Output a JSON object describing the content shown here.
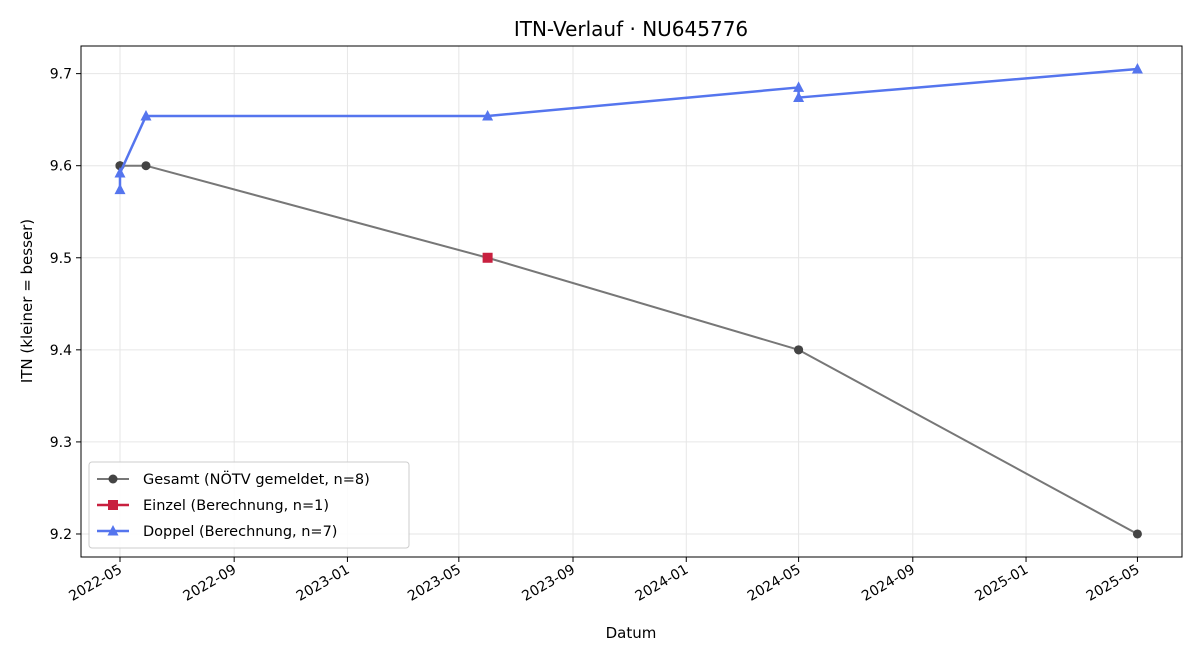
{
  "chart_data": {
    "type": "line",
    "title": "ITN-Verlauf · NU645776",
    "xlabel": "Datum",
    "ylabel": "ITN  (kleiner = besser)",
    "x_type": "date",
    "xlim": [
      "2022-03-20",
      "2025-06-18"
    ],
    "ylim": [
      9.175,
      9.73
    ],
    "x_ticks": [
      "2022-05",
      "2022-09",
      "2023-01",
      "2023-05",
      "2023-09",
      "2024-01",
      "2024-05",
      "2024-09",
      "2025-01",
      "2025-05"
    ],
    "y_ticks": [
      "9.2",
      "9.3",
      "9.4",
      "9.5",
      "9.6",
      "9.7"
    ],
    "grid": true,
    "legend_position": "lower-left",
    "series": [
      {
        "name": "Gesamt (NÖTV gemeldet, n=8)",
        "color": "#777777",
        "marker_color": "#444444",
        "marker": "circle",
        "points": [
          {
            "x": "2022-05-01",
            "y": 9.6
          },
          {
            "x": "2022-05-01",
            "y": 9.6
          },
          {
            "x": "2022-05-01",
            "y": 9.6
          },
          {
            "x": "2022-05-29",
            "y": 9.6
          },
          {
            "x": "2023-06-01",
            "y": 9.5
          },
          {
            "x": "2024-05-01",
            "y": 9.4
          },
          {
            "x": "2024-05-01",
            "y": 9.4
          },
          {
            "x": "2025-05-01",
            "y": 9.2
          }
        ]
      },
      {
        "name": "Einzel (Berechnung, n=1)",
        "color": "#c8203f",
        "marker_color": "#c8203f",
        "marker": "square",
        "points": [
          {
            "x": "2023-06-01",
            "y": 9.5
          }
        ]
      },
      {
        "name": "Doppel (Berechnung, n=7)",
        "color": "#5575ee",
        "marker_color": "#5575ee",
        "marker": "triangle",
        "points": [
          {
            "x": "2022-05-01",
            "y": 9.574
          },
          {
            "x": "2022-05-01",
            "y": 9.592
          },
          {
            "x": "2022-05-29",
            "y": 9.654
          },
          {
            "x": "2023-06-01",
            "y": 9.654
          },
          {
            "x": "2024-05-01",
            "y": 9.685
          },
          {
            "x": "2024-05-01",
            "y": 9.674
          },
          {
            "x": "2025-05-01",
            "y": 9.705
          }
        ]
      }
    ]
  }
}
